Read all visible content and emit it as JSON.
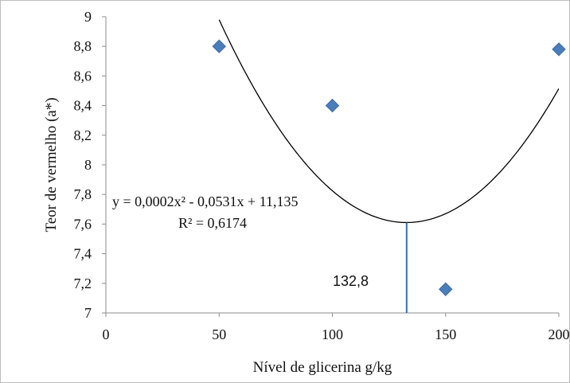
{
  "chart_data": {
    "type": "scatter",
    "title": "",
    "xlabel": "Nível de glicerina g/kg",
    "ylabel": "Teor de vermelho (a*)",
    "xlim": [
      0,
      200
    ],
    "ylim": [
      7,
      9
    ],
    "x_ticks": [
      0,
      50,
      100,
      150,
      200
    ],
    "x_tick_labels": [
      "0",
      "50",
      "100",
      "150",
      "200"
    ],
    "y_ticks": [
      7,
      7.2,
      7.4,
      7.6,
      7.8,
      8,
      8.2,
      8.4,
      8.6,
      8.8,
      9
    ],
    "y_tick_labels": [
      "7",
      "7,2",
      "7,4",
      "7,6",
      "7,8",
      "8",
      "8,2",
      "8,4",
      "8,6",
      "8,8",
      "9"
    ],
    "grid": false,
    "series": [
      {
        "points": [
          {
            "x": 50,
            "y": 8.8
          },
          {
            "x": 100,
            "y": 8.4
          },
          {
            "x": 150,
            "y": 7.16
          },
          {
            "x": 200,
            "y": 8.78
          }
        ],
        "marker": "diamond",
        "color": "#4a7ebb"
      }
    ],
    "trendline": {
      "type": "polynomial",
      "coefficients": {
        "a": 0.0002,
        "b": -0.0531,
        "c": 11.135
      },
      "x_range": [
        50,
        200
      ],
      "color": "#000000"
    },
    "annotations": {
      "equation": "y = 0,0002x² - 0,0531x + 11,135",
      "r_squared": "R² = 0,6174",
      "vline_label": "132,8",
      "vline_x": 132.8,
      "vline_color": "#2e75b6"
    }
  }
}
